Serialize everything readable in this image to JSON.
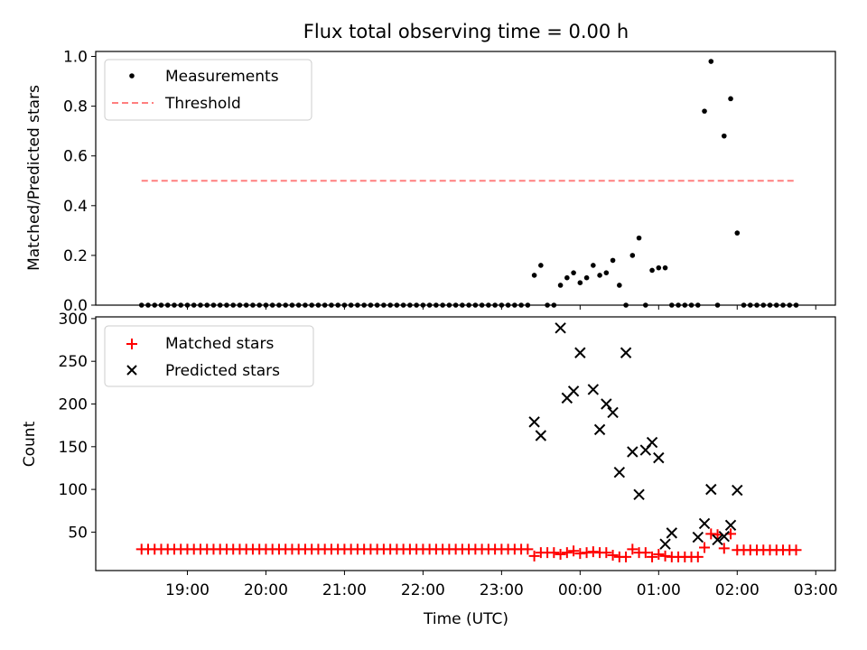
{
  "figure": {
    "title": "Flux total observing time = 0.00 h"
  },
  "chart_data": [
    {
      "type": "scatter",
      "panel": "top",
      "ylabel": "Matched/Predicted stars",
      "ylim": [
        0,
        1.02
      ],
      "yticks": [
        0.0,
        0.2,
        0.4,
        0.6,
        0.8,
        1.0
      ],
      "ytick_labels": [
        "0.0",
        "0.2",
        "0.4",
        "0.6",
        "0.8",
        "1.0"
      ],
      "legend_placement": "upper left",
      "threshold": {
        "name": "Threshold",
        "value": 0.5,
        "color": "#ff7f7f",
        "style": "dashed",
        "x_start": "18:25",
        "x_end": "02:45"
      },
      "series": [
        {
          "name": "Measurements",
          "marker": "dot",
          "color": "#000000",
          "x": [
            "18:25",
            "18:30",
            "18:35",
            "18:40",
            "18:45",
            "18:50",
            "18:55",
            "19:00",
            "19:05",
            "19:10",
            "19:15",
            "19:20",
            "19:25",
            "19:30",
            "19:35",
            "19:40",
            "19:45",
            "19:50",
            "19:55",
            "20:00",
            "20:05",
            "20:10",
            "20:15",
            "20:20",
            "20:25",
            "20:30",
            "20:35",
            "20:40",
            "20:45",
            "20:50",
            "20:55",
            "21:00",
            "21:05",
            "21:10",
            "21:15",
            "21:20",
            "21:25",
            "21:30",
            "21:35",
            "21:40",
            "21:45",
            "21:50",
            "21:55",
            "22:00",
            "22:05",
            "22:10",
            "22:15",
            "22:20",
            "22:25",
            "22:30",
            "22:35",
            "22:40",
            "22:45",
            "22:50",
            "22:55",
            "23:00",
            "23:05",
            "23:10",
            "23:15",
            "23:20",
            "23:25",
            "23:30",
            "23:35",
            "23:40",
            "23:45",
            "23:50",
            "23:55",
            "00:00",
            "00:05",
            "00:10",
            "00:15",
            "00:20",
            "00:25",
            "00:30",
            "00:35",
            "00:40",
            "00:45",
            "00:50",
            "00:55",
            "01:00",
            "01:05",
            "01:10",
            "01:15",
            "01:20",
            "01:25",
            "01:30",
            "01:35",
            "01:40",
            "01:45",
            "01:50",
            "01:55",
            "02:00",
            "02:05",
            "02:10",
            "02:15",
            "02:20",
            "02:25",
            "02:30",
            "02:35",
            "02:40",
            "02:45"
          ],
          "values": [
            0,
            0,
            0,
            0,
            0,
            0,
            0,
            0,
            0,
            0,
            0,
            0,
            0,
            0,
            0,
            0,
            0,
            0,
            0,
            0,
            0,
            0,
            0,
            0,
            0,
            0,
            0,
            0,
            0,
            0,
            0,
            0,
            0,
            0,
            0,
            0,
            0,
            0,
            0,
            0,
            0,
            0,
            0,
            0,
            0,
            0,
            0,
            0,
            0,
            0,
            0,
            0,
            0,
            0,
            0,
            0,
            0,
            0,
            0,
            0,
            0.12,
            0.16,
            0,
            0,
            0.08,
            0.11,
            0.13,
            0.09,
            0.11,
            0.16,
            0.12,
            0.13,
            0.18,
            0.08,
            0,
            0.2,
            0.27,
            0,
            0.14,
            0.15,
            0.15,
            0,
            0,
            0,
            0,
            0,
            0.78,
            0.98,
            0,
            0.68,
            0.83,
            0.29,
            0,
            0,
            0,
            0,
            0,
            0,
            0,
            0,
            0
          ]
        }
      ]
    },
    {
      "type": "scatter",
      "panel": "bottom",
      "xlabel": "Time (UTC)",
      "ylabel": "Count",
      "ylim": [
        5,
        302
      ],
      "yticks": [
        50,
        100,
        150,
        200,
        250,
        300
      ],
      "ytick_labels": [
        "50",
        "100",
        "150",
        "200",
        "250",
        "300"
      ],
      "xticks": [
        "19:00",
        "20:00",
        "21:00",
        "22:00",
        "23:00",
        "00:00",
        "01:00",
        "02:00",
        "03:00"
      ],
      "xlim": [
        "17:50",
        "03:15"
      ],
      "legend_placement": "upper left",
      "series": [
        {
          "name": "Matched stars",
          "marker": "plus",
          "color": "#ff0000",
          "x": [
            "18:25",
            "18:30",
            "18:35",
            "18:40",
            "18:45",
            "18:50",
            "18:55",
            "19:00",
            "19:05",
            "19:10",
            "19:15",
            "19:20",
            "19:25",
            "19:30",
            "19:35",
            "19:40",
            "19:45",
            "19:50",
            "19:55",
            "20:00",
            "20:05",
            "20:10",
            "20:15",
            "20:20",
            "20:25",
            "20:30",
            "20:35",
            "20:40",
            "20:45",
            "20:50",
            "20:55",
            "21:00",
            "21:05",
            "21:10",
            "21:15",
            "21:20",
            "21:25",
            "21:30",
            "21:35",
            "21:40",
            "21:45",
            "21:50",
            "21:55",
            "22:00",
            "22:05",
            "22:10",
            "22:15",
            "22:20",
            "22:25",
            "22:30",
            "22:35",
            "22:40",
            "22:45",
            "22:50",
            "22:55",
            "23:00",
            "23:05",
            "23:10",
            "23:15",
            "23:20",
            "23:25",
            "23:30",
            "23:35",
            "23:40",
            "23:45",
            "23:50",
            "23:55",
            "00:00",
            "00:05",
            "00:10",
            "00:15",
            "00:20",
            "00:25",
            "00:30",
            "00:35",
            "00:40",
            "00:45",
            "00:50",
            "00:55",
            "01:00",
            "01:05",
            "01:10",
            "01:15",
            "01:20",
            "01:25",
            "01:30",
            "01:35",
            "01:40",
            "01:45",
            "01:50",
            "01:55",
            "02:00",
            "02:05",
            "02:10",
            "02:15",
            "02:20",
            "02:25",
            "02:30",
            "02:35",
            "02:40",
            "02:45"
          ],
          "values": [
            30,
            30,
            30,
            30,
            30,
            30,
            30,
            30,
            30,
            30,
            30,
            30,
            30,
            30,
            30,
            30,
            30,
            30,
            30,
            30,
            30,
            30,
            30,
            30,
            30,
            30,
            30,
            30,
            30,
            30,
            30,
            30,
            30,
            30,
            30,
            30,
            30,
            30,
            30,
            30,
            30,
            30,
            30,
            30,
            30,
            30,
            30,
            30,
            30,
            30,
            30,
            30,
            30,
            30,
            30,
            30,
            30,
            30,
            30,
            30,
            22,
            26,
            26,
            26,
            24,
            26,
            28,
            25,
            26,
            27,
            26,
            26,
            23,
            21,
            21,
            30,
            26,
            26,
            21,
            24,
            22,
            21,
            21,
            21,
            21,
            21,
            32,
            48,
            47,
            31,
            48,
            29,
            29,
            29,
            29,
            29,
            29,
            29,
            29,
            29,
            29
          ]
        },
        {
          "name": "Predicted stars",
          "marker": "x",
          "color": "#000000",
          "x": [
            "23:25",
            "23:30",
            "23:45",
            "23:50",
            "23:55",
            "00:00",
            "00:10",
            "00:15",
            "00:20",
            "00:25",
            "00:30",
            "00:35",
            "00:40",
            "00:45",
            "00:50",
            "00:55",
            "01:00",
            "01:05",
            "01:10",
            "01:30",
            "01:35",
            "01:40",
            "01:45",
            "01:50",
            "01:55",
            "02:00"
          ],
          "values": [
            179,
            163,
            289,
            207,
            215,
            260,
            217,
            170,
            200,
            190,
            120,
            260,
            144,
            94,
            146,
            155,
            137,
            36,
            49,
            44,
            60,
            100,
            41,
            45,
            58,
            99
          ]
        }
      ]
    }
  ]
}
